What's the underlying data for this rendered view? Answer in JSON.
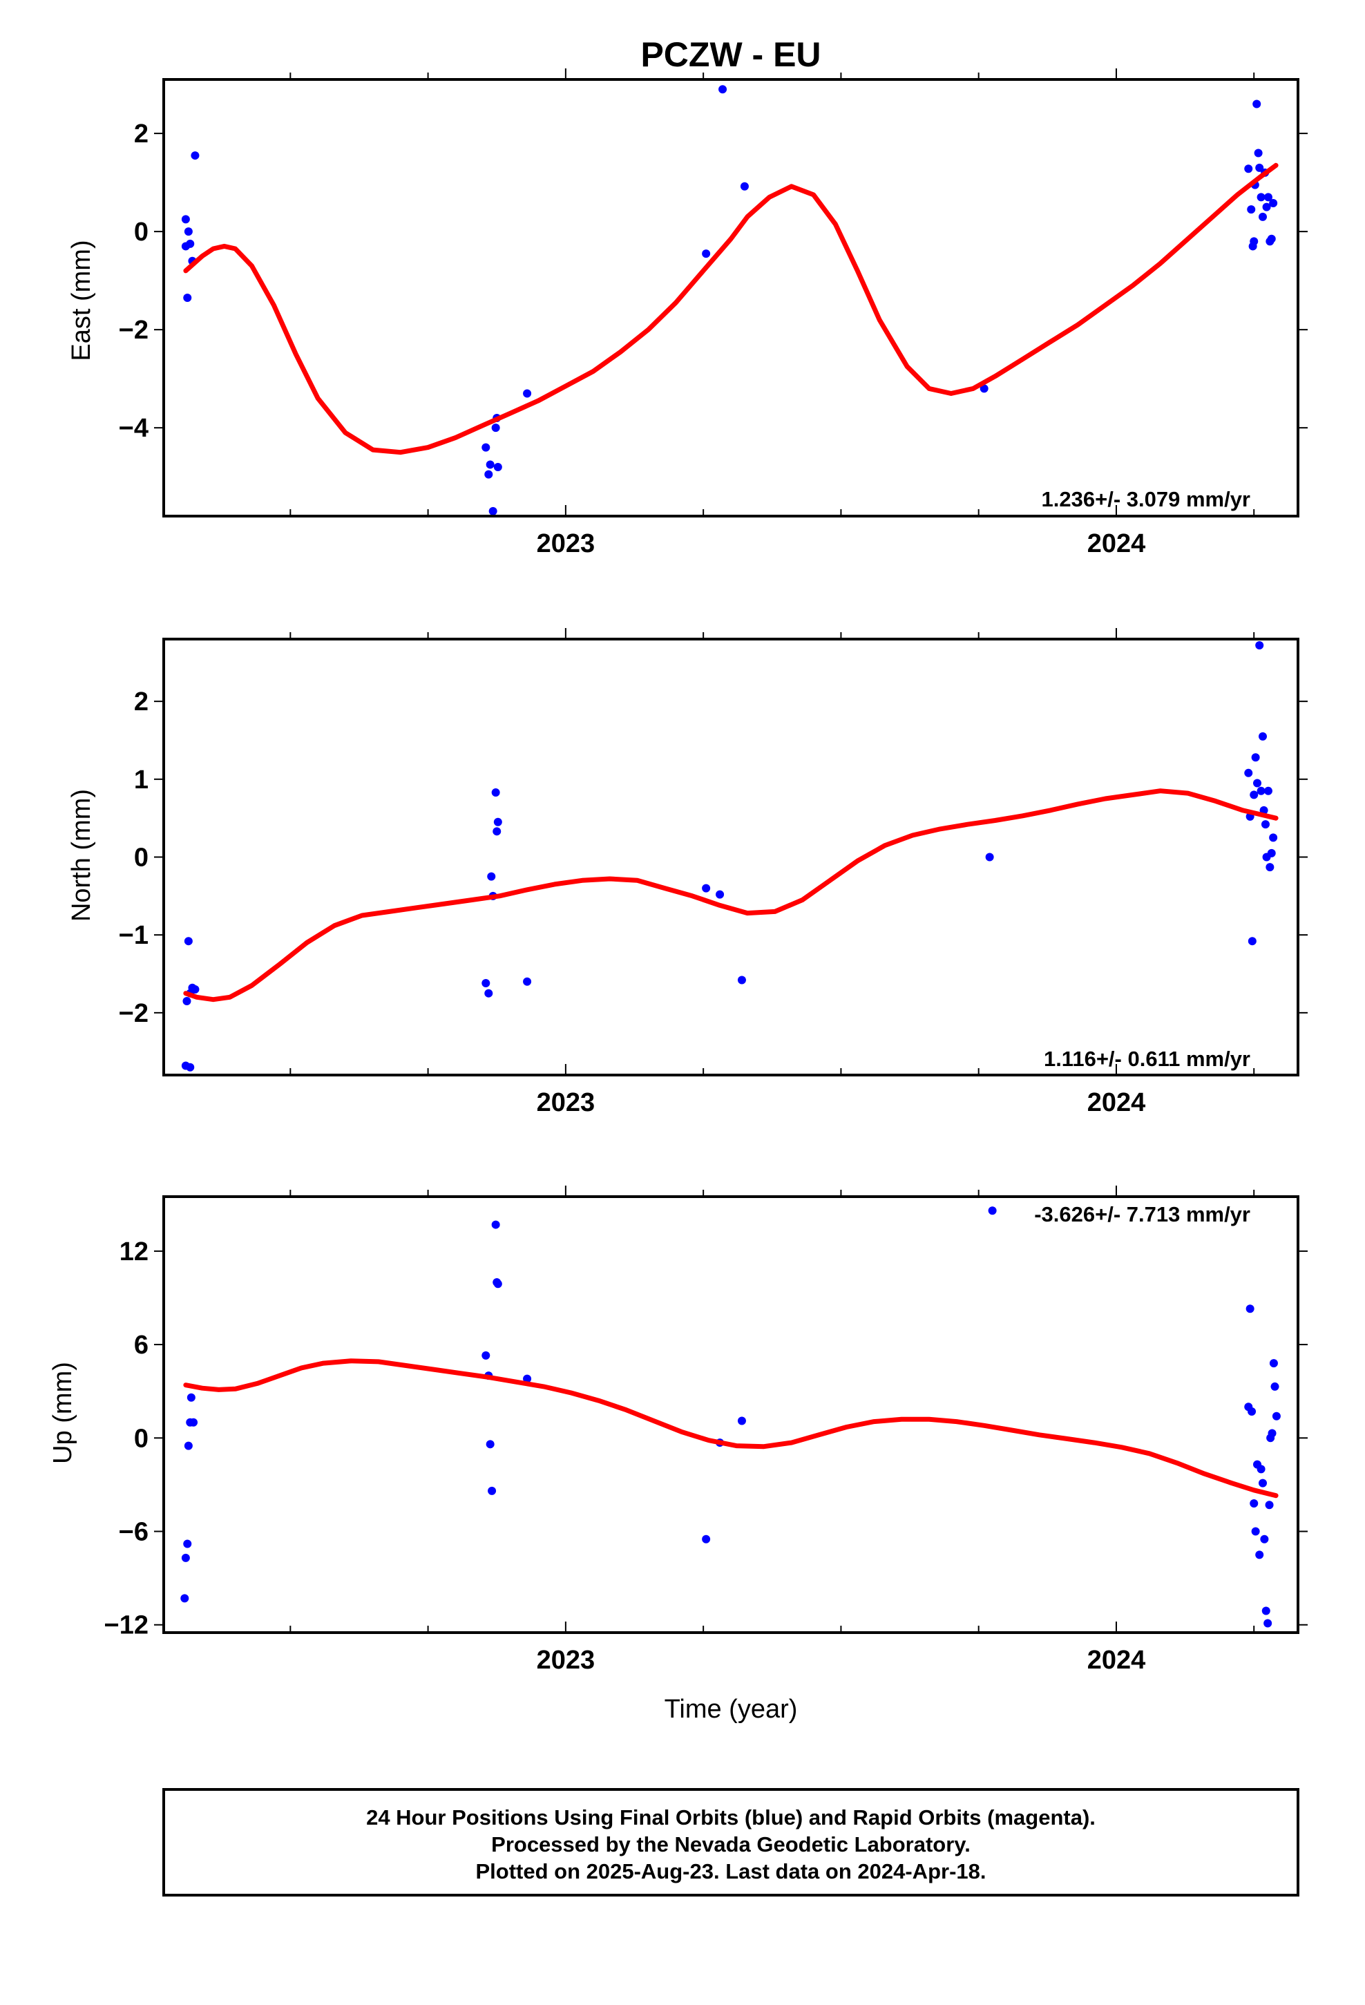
{
  "title": "PCZW - EU",
  "x_axis_title": "Time (year)",
  "footer": {
    "line1": "24 Hour Positions Using Final Orbits (blue) and Rapid Orbits (magenta).",
    "line2": "Processed by the Nevada Geodetic Laboratory.",
    "line3": "Plotted on 2025-Aug-23. Last data on 2024-Apr-18."
  },
  "colors": {
    "points": "#0000ff",
    "fit": "#ff0000",
    "axes": "#000000"
  },
  "chart_data": [
    {
      "type": "scatter",
      "panel": "east",
      "ylabel": "East (mm)",
      "rate": "1.236+/- 3.079 mm/yr",
      "xlim": [
        2022.27,
        2024.33
      ],
      "ylim": [
        -5.8,
        3.1
      ],
      "yticks": [
        2,
        0,
        -2,
        -4
      ],
      "ytick_labels": [
        "2",
        "0",
        "−2",
        "−4"
      ],
      "xticks": [
        2023,
        2024
      ],
      "xtick_labels": [
        "2023",
        "2024"
      ],
      "points": [
        [
          2022.31,
          0.25
        ],
        [
          2022.315,
          0.0
        ],
        [
          2022.31,
          -0.3
        ],
        [
          2022.318,
          -0.25
        ],
        [
          2022.322,
          -0.6
        ],
        [
          2022.313,
          -1.35
        ],
        [
          2022.327,
          1.55
        ],
        [
          2022.855,
          -4.4
        ],
        [
          2022.86,
          -4.95
        ],
        [
          2022.863,
          -4.75
        ],
        [
          2022.868,
          -5.7
        ],
        [
          2022.873,
          -4.0
        ],
        [
          2022.875,
          -3.8
        ],
        [
          2022.877,
          -4.8
        ],
        [
          2022.93,
          -3.3
        ],
        [
          2023.255,
          -0.45
        ],
        [
          2023.285,
          2.9
        ],
        [
          2023.325,
          0.92
        ],
        [
          2023.76,
          -3.2
        ],
        [
          2024.24,
          1.28
        ],
        [
          2024.245,
          0.45
        ],
        [
          2024.248,
          -0.3
        ],
        [
          2024.25,
          -0.2
        ],
        [
          2024.252,
          0.95
        ],
        [
          2024.255,
          2.6
        ],
        [
          2024.258,
          1.6
        ],
        [
          2024.26,
          1.3
        ],
        [
          2024.263,
          0.7
        ],
        [
          2024.266,
          0.3
        ],
        [
          2024.27,
          1.2
        ],
        [
          2024.273,
          0.5
        ],
        [
          2024.276,
          0.7
        ],
        [
          2024.279,
          -0.2
        ],
        [
          2024.282,
          -0.15
        ],
        [
          2024.285,
          0.58
        ]
      ],
      "fit": [
        [
          2022.31,
          -0.8
        ],
        [
          2022.34,
          -0.5
        ],
        [
          2022.36,
          -0.35
        ],
        [
          2022.38,
          -0.3
        ],
        [
          2022.4,
          -0.35
        ],
        [
          2022.43,
          -0.7
        ],
        [
          2022.47,
          -1.5
        ],
        [
          2022.51,
          -2.5
        ],
        [
          2022.55,
          -3.4
        ],
        [
          2022.6,
          -4.1
        ],
        [
          2022.65,
          -4.45
        ],
        [
          2022.7,
          -4.5
        ],
        [
          2022.75,
          -4.4
        ],
        [
          2022.8,
          -4.2
        ],
        [
          2022.85,
          -3.95
        ],
        [
          2022.9,
          -3.7
        ],
        [
          2022.95,
          -3.45
        ],
        [
          2023.0,
          -3.15
        ],
        [
          2023.05,
          -2.85
        ],
        [
          2023.1,
          -2.45
        ],
        [
          2023.15,
          -2.0
        ],
        [
          2023.2,
          -1.45
        ],
        [
          2023.25,
          -0.8
        ],
        [
          2023.3,
          -0.15
        ],
        [
          2023.33,
          0.3
        ],
        [
          2023.37,
          0.7
        ],
        [
          2023.41,
          0.92
        ],
        [
          2023.45,
          0.75
        ],
        [
          2023.49,
          0.15
        ],
        [
          2023.53,
          -0.8
        ],
        [
          2023.57,
          -1.8
        ],
        [
          2023.62,
          -2.75
        ],
        [
          2023.66,
          -3.2
        ],
        [
          2023.7,
          -3.3
        ],
        [
          2023.74,
          -3.2
        ],
        [
          2023.78,
          -2.95
        ],
        [
          2023.83,
          -2.6
        ],
        [
          2023.88,
          -2.25
        ],
        [
          2023.93,
          -1.9
        ],
        [
          2023.98,
          -1.5
        ],
        [
          2024.03,
          -1.1
        ],
        [
          2024.08,
          -0.65
        ],
        [
          2024.13,
          -0.15
        ],
        [
          2024.18,
          0.35
        ],
        [
          2024.22,
          0.75
        ],
        [
          2024.26,
          1.1
        ],
        [
          2024.29,
          1.35
        ]
      ]
    },
    {
      "type": "scatter",
      "panel": "north",
      "ylabel": "North (mm)",
      "rate": "1.116+/- 0.611 mm/yr",
      "xlim": [
        2022.27,
        2024.33
      ],
      "ylim": [
        -2.8,
        2.8
      ],
      "yticks": [
        2,
        1,
        0,
        -1,
        -2
      ],
      "ytick_labels": [
        "2",
        "1",
        "0",
        "−1",
        "−2"
      ],
      "xticks": [
        2023,
        2024
      ],
      "xtick_labels": [
        "2023",
        "2024"
      ],
      "points": [
        [
          2022.31,
          -2.68
        ],
        [
          2022.318,
          -2.7
        ],
        [
          2022.312,
          -1.85
        ],
        [
          2022.315,
          -1.08
        ],
        [
          2022.318,
          -1.75
        ],
        [
          2022.322,
          -1.68
        ],
        [
          2022.327,
          -1.7
        ],
        [
          2022.855,
          -1.62
        ],
        [
          2022.86,
          -1.75
        ],
        [
          2022.865,
          -0.25
        ],
        [
          2022.868,
          -0.5
        ],
        [
          2022.873,
          0.83
        ],
        [
          2022.875,
          0.33
        ],
        [
          2022.877,
          0.45
        ],
        [
          2022.93,
          -1.6
        ],
        [
          2023.255,
          -0.4
        ],
        [
          2023.28,
          -0.48
        ],
        [
          2023.32,
          -1.58
        ],
        [
          2023.77,
          0.0
        ],
        [
          2024.24,
          1.08
        ],
        [
          2024.243,
          0.52
        ],
        [
          2024.247,
          -1.08
        ],
        [
          2024.25,
          0.8
        ],
        [
          2024.253,
          1.28
        ],
        [
          2024.256,
          0.95
        ],
        [
          2024.26,
          2.72
        ],
        [
          2024.263,
          0.85
        ],
        [
          2024.266,
          1.55
        ],
        [
          2024.268,
          0.6
        ],
        [
          2024.271,
          0.42
        ],
        [
          2024.273,
          0.0
        ],
        [
          2024.276,
          0.85
        ],
        [
          2024.279,
          -0.13
        ],
        [
          2024.282,
          0.05
        ],
        [
          2024.285,
          0.25
        ]
      ],
      "fit": [
        [
          2022.31,
          -1.75
        ],
        [
          2022.33,
          -1.8
        ],
        [
          2022.36,
          -1.83
        ],
        [
          2022.39,
          -1.8
        ],
        [
          2022.43,
          -1.65
        ],
        [
          2022.48,
          -1.38
        ],
        [
          2022.53,
          -1.1
        ],
        [
          2022.58,
          -0.88
        ],
        [
          2022.63,
          -0.75
        ],
        [
          2022.68,
          -0.7
        ],
        [
          2022.73,
          -0.65
        ],
        [
          2022.78,
          -0.6
        ],
        [
          2022.83,
          -0.55
        ],
        [
          2022.88,
          -0.5
        ],
        [
          2022.93,
          -0.42
        ],
        [
          2022.98,
          -0.35
        ],
        [
          2023.03,
          -0.3
        ],
        [
          2023.08,
          -0.28
        ],
        [
          2023.13,
          -0.3
        ],
        [
          2023.18,
          -0.4
        ],
        [
          2023.23,
          -0.5
        ],
        [
          2023.28,
          -0.62
        ],
        [
          2023.33,
          -0.72
        ],
        [
          2023.38,
          -0.7
        ],
        [
          2023.43,
          -0.55
        ],
        [
          2023.48,
          -0.3
        ],
        [
          2023.53,
          -0.05
        ],
        [
          2023.58,
          0.15
        ],
        [
          2023.63,
          0.28
        ],
        [
          2023.68,
          0.36
        ],
        [
          2023.73,
          0.42
        ],
        [
          2023.78,
          0.47
        ],
        [
          2023.83,
          0.53
        ],
        [
          2023.88,
          0.6
        ],
        [
          2023.93,
          0.68
        ],
        [
          2023.98,
          0.75
        ],
        [
          2024.03,
          0.8
        ],
        [
          2024.08,
          0.85
        ],
        [
          2024.13,
          0.82
        ],
        [
          2024.18,
          0.72
        ],
        [
          2024.23,
          0.6
        ],
        [
          2024.26,
          0.55
        ],
        [
          2024.29,
          0.5
        ]
      ]
    },
    {
      "type": "scatter",
      "panel": "up",
      "ylabel": "Up (mm)",
      "rate": "-3.626+/- 7.713 mm/yr",
      "xlim": [
        2022.27,
        2024.33
      ],
      "ylim": [
        -12.5,
        15.5
      ],
      "yticks": [
        12,
        6,
        0,
        -6,
        -12
      ],
      "ytick_labels": [
        "12",
        "6",
        "0",
        "−6",
        "−12"
      ],
      "xticks": [
        2023,
        2024
      ],
      "xtick_labels": [
        "2023",
        "2024"
      ],
      "points": [
        [
          2022.308,
          -10.3
        ],
        [
          2022.31,
          -7.7
        ],
        [
          2022.313,
          -6.8
        ],
        [
          2022.315,
          -0.5
        ],
        [
          2022.318,
          1.0
        ],
        [
          2022.32,
          2.6
        ],
        [
          2022.324,
          1.0
        ],
        [
          2022.855,
          5.3
        ],
        [
          2022.86,
          4.0
        ],
        [
          2022.863,
          -0.4
        ],
        [
          2022.866,
          -3.4
        ],
        [
          2022.873,
          13.7
        ],
        [
          2022.875,
          10.0
        ],
        [
          2022.877,
          9.9
        ],
        [
          2022.93,
          3.8
        ],
        [
          2023.255,
          -6.5
        ],
        [
          2023.28,
          -0.3
        ],
        [
          2023.32,
          1.1
        ],
        [
          2023.775,
          14.6
        ],
        [
          2024.24,
          2.0
        ],
        [
          2024.243,
          8.3
        ],
        [
          2024.246,
          1.7
        ],
        [
          2024.25,
          -4.2
        ],
        [
          2024.253,
          -6.0
        ],
        [
          2024.256,
          -1.7
        ],
        [
          2024.26,
          -7.5
        ],
        [
          2024.263,
          -2.0
        ],
        [
          2024.266,
          -2.9
        ],
        [
          2024.269,
          -6.5
        ],
        [
          2024.272,
          -11.1
        ],
        [
          2024.275,
          -11.9
        ],
        [
          2024.278,
          -4.3
        ],
        [
          2024.28,
          0.0
        ],
        [
          2024.283,
          0.3
        ],
        [
          2024.286,
          4.8
        ],
        [
          2024.288,
          3.3
        ],
        [
          2024.291,
          1.4
        ]
      ],
      "fit": [
        [
          2022.31,
          3.4
        ],
        [
          2022.34,
          3.2
        ],
        [
          2022.37,
          3.1
        ],
        [
          2022.4,
          3.15
        ],
        [
          2022.44,
          3.5
        ],
        [
          2022.48,
          4.0
        ],
        [
          2022.52,
          4.5
        ],
        [
          2022.56,
          4.8
        ],
        [
          2022.61,
          4.95
        ],
        [
          2022.66,
          4.9
        ],
        [
          2022.71,
          4.65
        ],
        [
          2022.76,
          4.4
        ],
        [
          2022.81,
          4.15
        ],
        [
          2022.86,
          3.9
        ],
        [
          2022.91,
          3.6
        ],
        [
          2022.96,
          3.3
        ],
        [
          2023.01,
          2.9
        ],
        [
          2023.06,
          2.4
        ],
        [
          2023.11,
          1.8
        ],
        [
          2023.16,
          1.1
        ],
        [
          2023.21,
          0.4
        ],
        [
          2023.26,
          -0.15
        ],
        [
          2023.31,
          -0.5
        ],
        [
          2023.36,
          -0.55
        ],
        [
          2023.41,
          -0.3
        ],
        [
          2023.46,
          0.2
        ],
        [
          2023.51,
          0.7
        ],
        [
          2023.56,
          1.05
        ],
        [
          2023.61,
          1.2
        ],
        [
          2023.66,
          1.2
        ],
        [
          2023.71,
          1.05
        ],
        [
          2023.76,
          0.8
        ],
        [
          2023.81,
          0.5
        ],
        [
          2023.86,
          0.2
        ],
        [
          2023.91,
          -0.05
        ],
        [
          2023.96,
          -0.3
        ],
        [
          2024.01,
          -0.6
        ],
        [
          2024.06,
          -1.0
        ],
        [
          2024.11,
          -1.6
        ],
        [
          2024.16,
          -2.3
        ],
        [
          2024.21,
          -2.9
        ],
        [
          2024.25,
          -3.35
        ],
        [
          2024.29,
          -3.7
        ]
      ]
    }
  ]
}
